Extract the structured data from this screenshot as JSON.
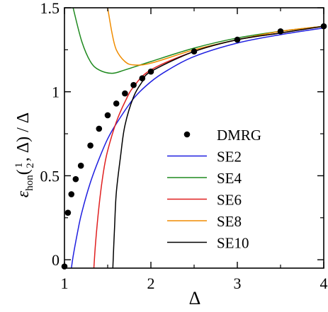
{
  "chart_data": {
    "type": "line",
    "title": "",
    "xlabel": "Δ",
    "ylabel": {
      "symbol": "ε",
      "subscript": "hon",
      "open": "(",
      "frac_num": "1",
      "frac_den": "2",
      "rest": ", Δ) / Δ"
    },
    "xlim": [
      1,
      4
    ],
    "ylim": [
      -0.05,
      1.5
    ],
    "x_ticks": [
      1,
      2,
      3,
      4
    ],
    "y_ticks": [
      0,
      0.5,
      1,
      1.5
    ],
    "x_tick_labels": [
      "1",
      "2",
      "3",
      "4"
    ],
    "y_tick_labels": [
      "0",
      "0.5",
      "1",
      "1.5"
    ],
    "grid": false,
    "legend_position": "center-right",
    "series": [
      {
        "name": "DMRG",
        "type": "scatter",
        "color": "#000000",
        "points": [
          [
            1.0,
            -0.04
          ],
          [
            1.04,
            0.28
          ],
          [
            1.08,
            0.39
          ],
          [
            1.13,
            0.48
          ],
          [
            1.19,
            0.56
          ],
          [
            1.3,
            0.68
          ],
          [
            1.4,
            0.78
          ],
          [
            1.5,
            0.86
          ],
          [
            1.6,
            0.93
          ],
          [
            1.7,
            0.99
          ],
          [
            1.8,
            1.04
          ],
          [
            1.9,
            1.08
          ],
          [
            2.0,
            1.12
          ],
          [
            2.5,
            1.24
          ],
          [
            3.0,
            1.31
          ],
          [
            3.5,
            1.36
          ],
          [
            4.0,
            1.39
          ]
        ]
      },
      {
        "name": "SE2",
        "type": "line",
        "color": "#1f1fe0",
        "points": [
          [
            1.08,
            -0.05
          ],
          [
            1.1,
            0.02
          ],
          [
            1.15,
            0.16
          ],
          [
            1.2,
            0.28
          ],
          [
            1.3,
            0.46
          ],
          [
            1.4,
            0.6
          ],
          [
            1.5,
            0.72
          ],
          [
            1.6,
            0.81
          ],
          [
            1.8,
            0.96
          ],
          [
            2.0,
            1.06
          ],
          [
            2.2,
            1.13
          ],
          [
            2.5,
            1.21
          ],
          [
            3.0,
            1.29
          ],
          [
            3.5,
            1.34
          ],
          [
            4.0,
            1.38
          ]
        ]
      },
      {
        "name": "SE4",
        "type": "line",
        "color": "#1f8a1f",
        "points": [
          [
            1.1,
            1.5
          ],
          [
            1.2,
            1.3
          ],
          [
            1.3,
            1.18
          ],
          [
            1.4,
            1.13
          ],
          [
            1.55,
            1.11
          ],
          [
            1.7,
            1.13
          ],
          [
            2.0,
            1.18
          ],
          [
            2.5,
            1.26
          ],
          [
            3.0,
            1.32
          ],
          [
            3.5,
            1.36
          ],
          [
            4.0,
            1.39
          ]
        ]
      },
      {
        "name": "SE6",
        "type": "line",
        "color": "#e01f1f",
        "points": [
          [
            1.34,
            -0.05
          ],
          [
            1.36,
            0.1
          ],
          [
            1.4,
            0.32
          ],
          [
            1.45,
            0.52
          ],
          [
            1.5,
            0.65
          ],
          [
            1.6,
            0.82
          ],
          [
            1.7,
            0.94
          ],
          [
            1.8,
            1.03
          ],
          [
            2.0,
            1.13
          ],
          [
            2.5,
            1.24
          ],
          [
            3.0,
            1.31
          ],
          [
            3.5,
            1.35
          ],
          [
            4.0,
            1.39
          ]
        ]
      },
      {
        "name": "SE8",
        "type": "line",
        "color": "#f08c00",
        "points": [
          [
            1.5,
            1.5
          ],
          [
            1.55,
            1.35
          ],
          [
            1.6,
            1.25
          ],
          [
            1.7,
            1.18
          ],
          [
            1.8,
            1.16
          ],
          [
            2.0,
            1.17
          ],
          [
            2.5,
            1.25
          ],
          [
            3.0,
            1.31
          ],
          [
            3.5,
            1.36
          ],
          [
            4.0,
            1.39
          ]
        ]
      },
      {
        "name": "SE10",
        "type": "line",
        "color": "#000000",
        "points": [
          [
            1.56,
            -0.05
          ],
          [
            1.58,
            0.2
          ],
          [
            1.6,
            0.4
          ],
          [
            1.65,
            0.62
          ],
          [
            1.7,
            0.8
          ],
          [
            1.8,
            0.97
          ],
          [
            1.9,
            1.06
          ],
          [
            2.0,
            1.12
          ],
          [
            2.5,
            1.24
          ],
          [
            3.0,
            1.31
          ],
          [
            3.5,
            1.35
          ],
          [
            4.0,
            1.39
          ]
        ]
      }
    ]
  }
}
